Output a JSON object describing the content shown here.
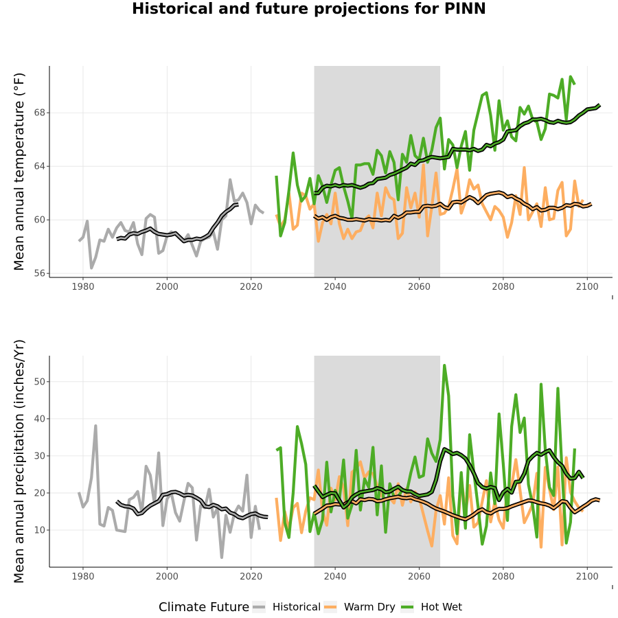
{
  "chart_data": {
    "title": "Historical and future projections for PINN",
    "legend": {
      "title": "Climate Future",
      "position": "bottom",
      "entries": [
        {
          "name": "Historical",
          "color": "#ABABAB"
        },
        {
          "name": "Warm Dry",
          "color": "#FDAE61"
        },
        {
          "name": "Hot Wet",
          "color": "#4DAC26"
        }
      ]
    },
    "shaded_period": [
      2035,
      2065
    ],
    "panels": [
      {
        "type": "line",
        "ylabel": "Mean annual temperature (°F)",
        "xlim": [
          1972,
          2106
        ],
        "ylim": [
          55.7,
          71.5
        ],
        "x_ticks": [
          1980,
          2000,
          2020,
          2040,
          2060,
          2080,
          2100
        ],
        "y_ticks": [
          56,
          60,
          64,
          68
        ],
        "grid": true,
        "series": [
          {
            "name": "Historical",
            "x_start": 1979,
            "values": [
              58.4,
              58.7,
              59.9,
              56.4,
              57.2,
              58.5,
              58.4,
              59.3,
              58.7,
              59.4,
              59.8,
              59.2,
              59.1,
              59.8,
              58.2,
              57.4,
              60.1,
              60.4,
              60.2,
              57.5,
              57.7,
              58.8,
              59.1,
              58.9,
              58.7,
              58.4,
              58.9,
              58.1,
              57.3,
              58.4,
              58.6,
              58.7,
              59.1,
              57.8,
              60.0,
              60.3,
              63.0,
              61.4,
              61.5,
              62.0,
              61.3,
              59.7,
              61.1,
              60.7,
              60.5
            ]
          },
          {
            "name": "Historical smooth",
            "x_start": 1988,
            "values": [
              58.55,
              58.65,
              58.6,
              58.9,
              59.0,
              58.95,
              59.1,
              59.2,
              59.35,
              59.1,
              58.95,
              58.9,
              58.85,
              58.9,
              59.0,
              58.7,
              58.4,
              58.5,
              58.5,
              58.6,
              58.55,
              58.7,
              58.9,
              59.4,
              59.8,
              60.3,
              60.6,
              60.8,
              61.1,
              61.15
            ]
          },
          {
            "name": "Warm Dry",
            "x_start": 2026,
            "values": [
              60.4,
              59.5,
              60.0,
              62.0,
              59.3,
              59.6,
              62.0,
              61.8,
              60.8,
              61.2,
              58.4,
              59.8,
              60.4,
              59.7,
              62.0,
              59.7,
              58.6,
              59.3,
              58.6,
              59.1,
              59.2,
              60.0,
              60.3,
              59.4,
              62.0,
              60.3,
              62.4,
              61.7,
              61.5,
              58.6,
              59.0,
              62.4,
              60.9,
              62.0,
              60.2,
              64.1,
              58.8,
              61.0,
              63.5,
              60.4,
              60.5,
              61.0,
              62.3,
              63.8,
              60.5,
              61.4,
              63.0,
              62.3,
              62.6,
              61.2,
              60.6,
              60.0,
              61.0,
              60.7,
              60.2,
              58.7,
              59.8,
              61.8,
              60.4,
              63.9,
              60.0,
              60.6,
              61.2,
              59.5,
              62.4,
              60.0,
              60.1,
              62.2,
              62.8,
              58.8,
              59.3,
              62.9,
              61.0,
              61.5
            ]
          },
          {
            "name": "Hot Wet",
            "x_start": 2026,
            "values": [
              63.3,
              58.8,
              59.8,
              62.2,
              65.0,
              62.6,
              61.4,
              61.8,
              63.1,
              61.2,
              63.3,
              62.5,
              61.3,
              62.6,
              63.7,
              63.9,
              62.5,
              61.4,
              60.1,
              64.1,
              64.1,
              64.2,
              64.2,
              63.4,
              65.2,
              64.8,
              63.5,
              65.1,
              64.3,
              61.5,
              64.9,
              64.3,
              66.3,
              64.8,
              64.5,
              66.1,
              64.3,
              65.2,
              66.9,
              67.6,
              63.8,
              66.0,
              65.6,
              63.9,
              65.5,
              66.6,
              63.7,
              66.7,
              68.0,
              69.3,
              69.5,
              67.8,
              65.2,
              68.9,
              66.7,
              67.4,
              66.2,
              65.9,
              68.4,
              67.9,
              68.5,
              67.5,
              67.3,
              66.0,
              66.8,
              69.4,
              69.3,
              69.1,
              70.5,
              67.5,
              70.7,
              70.1
            ]
          },
          {
            "name": "Warm Dry smooth",
            "x_start": 2035,
            "values": [
              60.3,
              60.1,
              60.2,
              60.0,
              60.2,
              60.3,
              60.15,
              60.1,
              60.0,
              60.0,
              60.05,
              60.0,
              59.95,
              60.05,
              60.0,
              60.0,
              59.95,
              60.0,
              59.95,
              60.3,
              60.15,
              60.3,
              60.55,
              60.55,
              60.6,
              60.6,
              61.0,
              61.05,
              61.0,
              61.05,
              61.2,
              60.95,
              60.85,
              61.3,
              61.35,
              61.3,
              61.5,
              61.7,
              61.55,
              61.25,
              61.55,
              61.85,
              61.95,
              62.0,
              62.05,
              61.95,
              61.7,
              61.8,
              61.6,
              61.45,
              61.2,
              61.05,
              60.8,
              60.95,
              60.7,
              60.75,
              60.9,
              60.9,
              60.8,
              60.9,
              61.1,
              61.05,
              61.2,
              61.15,
              61.0,
              61.05,
              61.2
            ]
          },
          {
            "name": "Hot Wet smooth",
            "x_start": 2035,
            "values": [
              62.0,
              62.0,
              62.4,
              62.55,
              62.5,
              62.6,
              62.5,
              62.6,
              62.55,
              62.6,
              62.5,
              62.4,
              62.5,
              62.7,
              62.75,
              63.05,
              63.1,
              63.15,
              63.35,
              63.45,
              63.6,
              63.75,
              63.9,
              64.2,
              64.1,
              64.4,
              64.45,
              64.6,
              64.7,
              64.65,
              64.6,
              64.65,
              64.7,
              65.3,
              65.25,
              65.25,
              65.25,
              65.2,
              65.3,
              65.15,
              65.25,
              65.6,
              65.5,
              65.7,
              65.8,
              66.0,
              66.6,
              66.65,
              66.7,
              67.0,
              67.2,
              67.3,
              67.5,
              67.5,
              67.55,
              67.45,
              67.3,
              67.25,
              67.4,
              67.3,
              67.25,
              67.3,
              67.5,
              67.8,
              68.0,
              68.25,
              68.3,
              68.35,
              68.6
            ]
          }
        ]
      },
      {
        "type": "line",
        "ylabel": "Mean annual precipitation (inches/Yr)",
        "xlim": [
          1972,
          2106
        ],
        "ylim": [
          0,
          57
        ],
        "x_ticks": [
          1980,
          2000,
          2020,
          2040,
          2060,
          2080,
          2100
        ],
        "y_ticks": [
          10,
          20,
          30,
          40,
          50
        ],
        "grid": true,
        "series": [
          {
            "name": "Historical",
            "x_start": 1979,
            "values": [
              20.2,
              16.2,
              17.9,
              24.1,
              38.1,
              11.6,
              11.1,
              16.1,
              15.3,
              10.0,
              9.8,
              9.6,
              18.2,
              18.8,
              20.4,
              14.6,
              27.2,
              24.8,
              17.1,
              30.8,
              11.2,
              18.4,
              20.0,
              14.7,
              12.4,
              17.8,
              22.6,
              21.4,
              7.3,
              16.6,
              16.0,
              21.0,
              13.5,
              16.0,
              2.6,
              14.0,
              9.4,
              14.4,
              16.5,
              15.1,
              24.8,
              8.0,
              16.4,
              10.1
            ]
          },
          {
            "name": "Historical smooth",
            "x_start": 1988,
            "values": [
              17.8,
              16.8,
              16.4,
              16.3,
              15.8,
              14.3,
              14.6,
              15.7,
              16.6,
              17.2,
              17.8,
              19.5,
              19.7,
              20.2,
              20.3,
              19.9,
              19.3,
              19.5,
              19.3,
              18.7,
              18.0,
              16.4,
              16.2,
              16.8,
              16.4,
              15.6,
              15.8,
              14.7,
              14.3,
              13.5,
              13.2,
              13.8,
              14.3,
              14.5,
              13.9,
              13.6,
              13.5
            ]
          },
          {
            "name": "Warm Dry",
            "x_start": 2026,
            "values": [
              18.7,
              7.2,
              15.0,
              10.2,
              16.0,
              17.2,
              9.3,
              15.1,
              18.7,
              18.2,
              26.2,
              15.0,
              11.3,
              21.3,
              18.1,
              24.4,
              21.4,
              11.2,
              25.6,
              26.5,
              28.4,
              24.0,
              25.7,
              25.2,
              22.0,
              19.2,
              18.3,
              18.7,
              17.3,
              22.5,
              16.7,
              21.2,
              17.6,
              20.3,
              18.7,
              14.2,
              9.8,
              5.7,
              15.3,
              19.3,
              11.6,
              24.1,
              8.5,
              6.3,
              24.5,
              14.7,
              22.0,
              10.8,
              12.0,
              17.7,
              23.3,
              12.2,
              17.6,
              12.7,
              10.5,
              21.3,
              22.0,
              29.0,
              20.7,
              12.0,
              14.3,
              17.0,
              25.3,
              5.4,
              26.9,
              21.1,
              15.5,
              27.0,
              6.0,
              29.5,
              20.2,
              17.8,
              16.0,
              15.0
            ]
          },
          {
            "name": "Hot Wet",
            "x_start": 2026,
            "values": [
              31.5,
              32.2,
              12.0,
              8.0,
              20.0,
              37.9,
              33.3,
              27.7,
              9.6,
              14.6,
              9.0,
              12.8,
              28.3,
              14.9,
              20.7,
              18.1,
              28.9,
              13.2,
              16.8,
              31.5,
              15.4,
              23.8,
              21.5,
              32.3,
              14.1,
              27.3,
              9.4,
              22.5,
              18.8,
              19.1,
              20.8,
              20.1,
              25.4,
              29.7,
              24.2,
              24.7,
              34.6,
              30.7,
              28.5,
              34.4,
              54.4,
              46.2,
              19.3,
              9.0,
              25.5,
              10.5,
              35.7,
              25.6,
              16.3,
              6.2,
              11.1,
              25.4,
              17.1,
              41.3,
              27.8,
              12.6,
              37.9,
              46.5,
              36.3,
              40.2,
              22.3,
              16.6,
              8.1,
              49.3,
              31.7,
              21.5,
              19.3,
              48.2,
              25.8,
              6.5,
              12.1,
              32.0
            ]
          },
          {
            "name": "Warm Dry smooth",
            "x_start": 2035,
            "values": [
              14.4,
              15.1,
              15.8,
              16.6,
              16.7,
              17.0,
              16.9,
              16.8,
              17.5,
              17.8,
              17.2,
              18.3,
              18.1,
              18.4,
              18.3,
              17.8,
              17.9,
              18.3,
              18.6,
              18.8,
              19.0,
              18.7,
              18.6,
              18.8,
              18.3,
              18.0,
              17.6,
              17.1,
              16.4,
              15.8,
              15.4,
              15.0,
              14.5,
              14.0,
              13.6,
              13.2,
              12.9,
              13.5,
              14.2,
              15.1,
              15.6,
              14.8,
              14.5,
              15.2,
              15.7,
              15.7,
              15.9,
              16.4,
              16.8,
              17.2,
              17.6,
              18.0,
              17.9,
              17.5,
              17.2,
              17.0,
              16.6,
              15.9,
              16.8,
              17.8,
              17.6,
              16.0,
              14.8,
              15.5,
              16.3,
              17.0,
              17.9,
              18.3,
              18.0
            ]
          },
          {
            "name": "Hot Wet smooth",
            "x_start": 2035,
            "values": [
              22.0,
              20.4,
              18.9,
              19.5,
              20.0,
              19.9,
              18.0,
              16.1,
              17.0,
              18.8,
              19.6,
              20.2,
              20.4,
              20.6,
              20.8,
              21.3,
              21.0,
              20.2,
              20.4,
              21.1,
              21.7,
              20.8,
              20.4,
              20.4,
              19.7,
              19.2,
              19.4,
              19.6,
              20.3,
              23.5,
              28.6,
              31.8,
              31.2,
              30.5,
              30.8,
              30.2,
              29.3,
              27.5,
              25.3,
              22.7,
              21.6,
              21.2,
              21.6,
              21.3,
              18.1,
              20.2,
              21.1,
              20.1,
              23.0,
              23.1,
              25.2,
              28.7,
              29.9,
              30.8,
              30.3,
              31.0,
              31.5,
              29.7,
              28.3,
              27.3,
              25.2,
              23.9,
              24.0,
              25.7,
              24.0
            ]
          }
        ]
      }
    ]
  }
}
